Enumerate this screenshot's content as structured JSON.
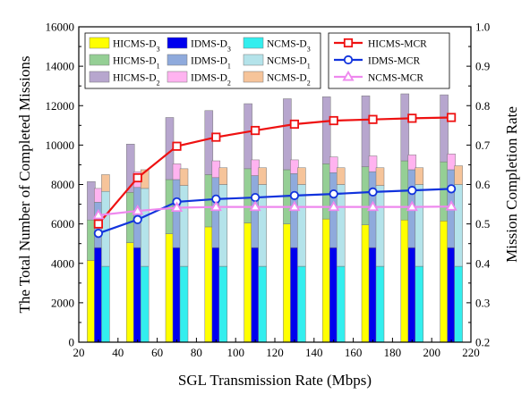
{
  "chart_data": {
    "type": "bar",
    "title": "",
    "xlabel": "SGL Transmission Rate (Mbps)",
    "ylabel": "The Total Number of Completed Missions",
    "y2label": "Mission Completion Rate",
    "xlim": [
      20,
      220
    ],
    "ylim": [
      0,
      16000
    ],
    "y2lim": [
      0.2,
      1.0
    ],
    "x_ticks": [
      20,
      40,
      60,
      80,
      100,
      120,
      140,
      160,
      180,
      200,
      220
    ],
    "y_ticks": [
      0,
      2000,
      4000,
      6000,
      8000,
      10000,
      12000,
      14000,
      16000
    ],
    "y2_ticks": [
      0.2,
      0.3,
      0.4,
      0.5,
      0.6,
      0.7,
      0.8,
      0.9,
      1.0
    ],
    "x": [
      30,
      50,
      70,
      90,
      110,
      130,
      150,
      170,
      190,
      210
    ],
    "stacked_bars": [
      {
        "name": "HICMS",
        "segments": [
          {
            "name": "HICMS-D3",
            "label_main": "HICMS-D",
            "label_sub": "3",
            "color": "#ffff00",
            "values": [
              4150,
              5050,
              5500,
              5850,
              6050,
              6000,
              6250,
              5950,
              6200,
              6150
            ]
          },
          {
            "name": "HICMS-D1",
            "label_main": "HICMS-D",
            "label_sub": "1",
            "color": "#95cf95",
            "values": [
              2050,
              2550,
              2750,
              2650,
              2750,
              2750,
              2800,
              2950,
              3000,
              3000
            ]
          },
          {
            "name": "HICMS-D2",
            "label_main": "HICMS-D",
            "label_sub": "2",
            "color": "#b7a6ce",
            "values": [
              1950,
              2450,
              3150,
              3250,
              3300,
              3600,
              3400,
              3600,
              3400,
              3400
            ]
          }
        ]
      },
      {
        "name": "IDMS",
        "segments": [
          {
            "name": "IDMS-D3",
            "label_main": "IDMS-D",
            "label_sub": "3",
            "color": "#0000ee",
            "values": [
              4800,
              4800,
              4800,
              4800,
              4800,
              4800,
              4800,
              4800,
              4800,
              4800
            ]
          },
          {
            "name": "IDMS-D1",
            "label_main": "IDMS-D",
            "label_sub": "1",
            "color": "#8faadc",
            "values": [
              2300,
              3050,
              3450,
              3550,
              3650,
              3750,
              3800,
              3850,
              3950,
              3950
            ]
          },
          {
            "name": "IDMS-D2",
            "label_main": "IDMS-D",
            "label_sub": "2",
            "color": "#ffb3f0",
            "values": [
              700,
              800,
              800,
              850,
              800,
              700,
              800,
              800,
              750,
              800
            ]
          }
        ]
      },
      {
        "name": "NCMS",
        "segments": [
          {
            "name": "NCMS-D3",
            "label_main": "NCMS-D",
            "label_sub": "3",
            "color": "#33eeee",
            "values": [
              3850,
              3850,
              3850,
              3850,
              3850,
              3850,
              3850,
              3850,
              3850,
              3850
            ]
          },
          {
            "name": "NCMS-D1",
            "label_main": "NCMS-D",
            "label_sub": "1",
            "color": "#b4e3ea",
            "values": [
              3800,
              3950,
              4100,
              4150,
              4150,
              4150,
              4150,
              4100,
              4150,
              4150
            ]
          },
          {
            "name": "NCMS-D2",
            "label_main": "NCMS-D",
            "label_sub": "2",
            "color": "#f6c49a",
            "values": [
              850,
              950,
              850,
              850,
              850,
              850,
              850,
              900,
              850,
              950
            ]
          }
        ]
      }
    ],
    "lines": [
      {
        "name": "HICMS-MCR",
        "color": "#ee1111",
        "marker": "square",
        "values": [
          0.5,
          0.617,
          0.697,
          0.72,
          0.737,
          0.753,
          0.762,
          0.765,
          0.768,
          0.77
        ]
      },
      {
        "name": "IDMS-MCR",
        "color": "#1133dd",
        "marker": "circle",
        "values": [
          0.476,
          0.511,
          0.556,
          0.563,
          0.567,
          0.572,
          0.576,
          0.581,
          0.585,
          0.589
        ]
      },
      {
        "name": "NCMS-MCR",
        "color": "#ee88ee",
        "marker": "triangle",
        "values": [
          0.522,
          0.533,
          0.541,
          0.543,
          0.543,
          0.543,
          0.543,
          0.543,
          0.543,
          0.544
        ]
      }
    ],
    "legend_position": "top"
  }
}
